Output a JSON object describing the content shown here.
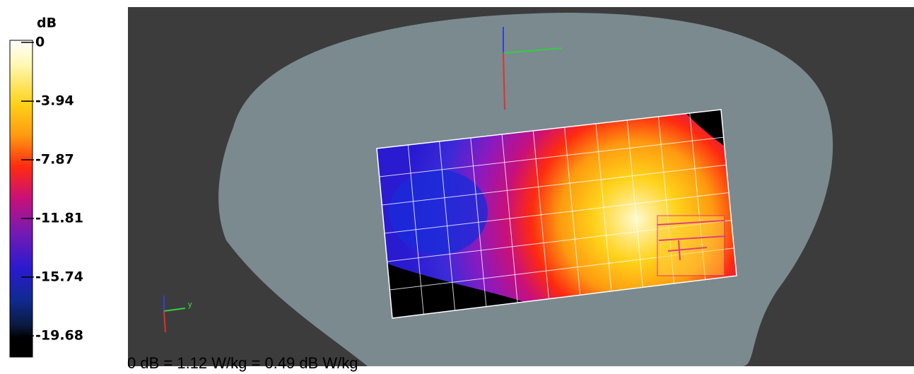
{
  "colorbar": {
    "title": "dB",
    "ticks": [
      0,
      -3.94,
      -7.87,
      -11.81,
      -15.74,
      -19.68
    ]
  },
  "axis_label": "y",
  "caption": "0 dB = 1.12 W/kg = 0.49 dB W/kg"
}
